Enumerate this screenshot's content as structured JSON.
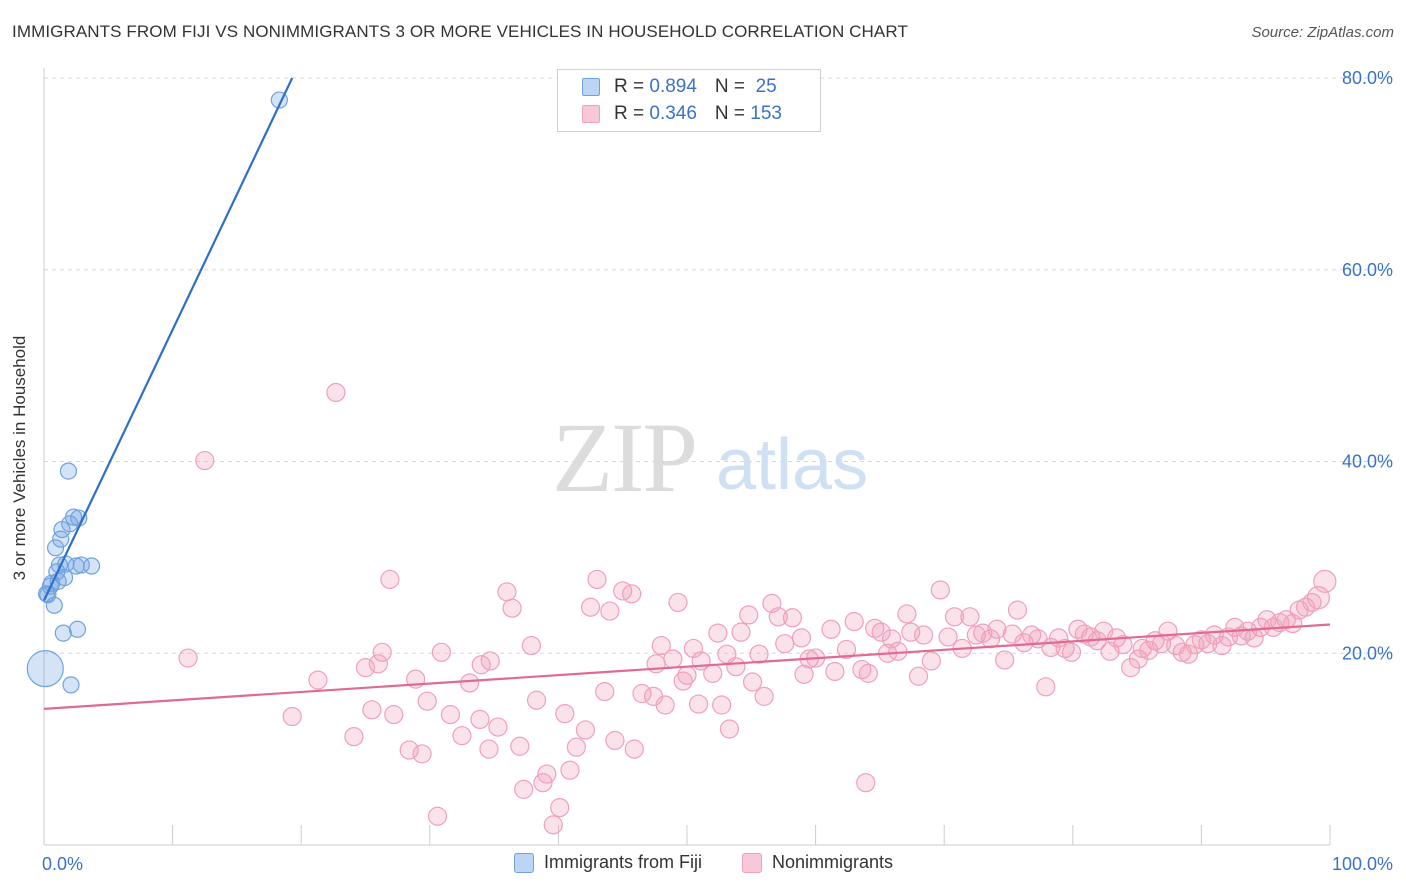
{
  "title": "IMMIGRANTS FROM FIJI VS NONIMMIGRANTS 3 OR MORE VEHICLES IN HOUSEHOLD CORRELATION CHART",
  "source": "Source: ZipAtlas.com",
  "watermark": {
    "zip": "ZIP",
    "atlas": "atlas"
  },
  "legend": {
    "rows": [
      {
        "r_label": "R = ",
        "r_value": "0.894",
        "n_label": "N = ",
        "n_value": " 25"
      },
      {
        "r_label": "R = ",
        "r_value": "0.346",
        "n_label": "N = ",
        "n_value": "153"
      }
    ]
  },
  "colors": {
    "fiji": "#6fa3e0",
    "fiji_line": "#2f6fc8",
    "nonimm": "#f0a0b8",
    "nonimm_line": "#e06a93",
    "axis_text": "#3a72c8",
    "grid": "#d8d8d8"
  },
  "chart_data": {
    "type": "scatter",
    "title": "IMMIGRANTS FROM FIJI VS NONIMMIGRANTS 3 OR MORE VEHICLES IN HOUSEHOLD CORRELATION CHART",
    "xlabel": "",
    "ylabel": "3 or more Vehicles in Household",
    "xlim": [
      0,
      100
    ],
    "ylim": [
      0,
      80
    ],
    "x_tick_labels": [
      "0.0%",
      "100.0%"
    ],
    "y_tick_labels": [
      "20.0%",
      "40.0%",
      "60.0%",
      "80.0%"
    ],
    "y_ticks": [
      20,
      40,
      60,
      80
    ],
    "grid": true,
    "legend_position": "bottom",
    "series": [
      {
        "name": "Immigrants from Fiji",
        "color": "#6fa3e0",
        "trend": {
          "x": [
            0,
            19.3
          ],
          "y": [
            25.5,
            80.0
          ]
        },
        "points": [
          [
            0.2,
            26.2
          ],
          [
            0.5,
            27.0
          ],
          [
            0.6,
            27.3
          ],
          [
            0.8,
            25.0
          ],
          [
            0.9,
            31.0
          ],
          [
            1.1,
            27.5
          ],
          [
            1.2,
            29.2
          ],
          [
            1.3,
            31.9
          ],
          [
            1.4,
            32.9
          ],
          [
            1.5,
            22.1
          ],
          [
            1.6,
            27.9
          ],
          [
            1.7,
            29.3
          ],
          [
            1.9,
            39.0
          ],
          [
            2.0,
            33.5
          ],
          [
            2.1,
            16.7
          ],
          [
            2.3,
            34.2
          ],
          [
            2.5,
            29.1
          ],
          [
            2.6,
            22.5
          ],
          [
            2.7,
            34.1
          ],
          [
            2.9,
            29.2
          ],
          [
            3.7,
            29.1
          ],
          [
            0.1,
            18.4
          ],
          [
            18.3,
            77.7
          ],
          [
            0.3,
            26.1
          ],
          [
            1.0,
            28.5
          ]
        ]
      },
      {
        "name": "Nonimmigrants",
        "color": "#f0a0b8",
        "trend": {
          "x": [
            0,
            100
          ],
          "y": [
            14.2,
            23.0
          ]
        },
        "points": [
          [
            11.2,
            19.5
          ],
          [
            12.5,
            40.1
          ],
          [
            19.3,
            13.4
          ],
          [
            21.3,
            17.2
          ],
          [
            22.7,
            47.2
          ],
          [
            24.1,
            11.3
          ],
          [
            25.0,
            18.5
          ],
          [
            25.5,
            14.1
          ],
          [
            26.0,
            18.9
          ],
          [
            26.3,
            20.1
          ],
          [
            26.9,
            27.7
          ],
          [
            27.2,
            13.6
          ],
          [
            28.4,
            9.9
          ],
          [
            28.9,
            17.3
          ],
          [
            29.4,
            9.5
          ],
          [
            29.8,
            15.0
          ],
          [
            30.6,
            3.0
          ],
          [
            30.9,
            20.1
          ],
          [
            31.6,
            13.6
          ],
          [
            32.5,
            11.4
          ],
          [
            33.1,
            16.9
          ],
          [
            33.9,
            13.1
          ],
          [
            34.0,
            18.8
          ],
          [
            34.6,
            10.0
          ],
          [
            34.7,
            19.2
          ],
          [
            35.3,
            12.3
          ],
          [
            36.0,
            26.4
          ],
          [
            36.4,
            24.7
          ],
          [
            37.0,
            10.3
          ],
          [
            37.3,
            5.8
          ],
          [
            37.9,
            20.8
          ],
          [
            38.3,
            15.1
          ],
          [
            38.8,
            6.5
          ],
          [
            39.1,
            7.4
          ],
          [
            39.6,
            2.1
          ],
          [
            40.1,
            3.9
          ],
          [
            40.5,
            13.7
          ],
          [
            40.9,
            7.8
          ],
          [
            41.4,
            10.2
          ],
          [
            42.1,
            12.0
          ],
          [
            42.5,
            24.8
          ],
          [
            43.0,
            27.7
          ],
          [
            43.6,
            16.0
          ],
          [
            44.0,
            24.4
          ],
          [
            44.4,
            10.9
          ],
          [
            45.0,
            26.5
          ],
          [
            45.7,
            26.2
          ],
          [
            45.9,
            10.0
          ],
          [
            46.5,
            15.8
          ],
          [
            47.4,
            15.5
          ],
          [
            47.6,
            18.9
          ],
          [
            48.0,
            20.8
          ],
          [
            48.3,
            14.6
          ],
          [
            48.9,
            19.4
          ],
          [
            49.3,
            25.3
          ],
          [
            50.0,
            17.7
          ],
          [
            50.5,
            20.5
          ],
          [
            51.1,
            19.2
          ],
          [
            52.0,
            17.9
          ],
          [
            52.4,
            22.1
          ],
          [
            52.7,
            14.6
          ],
          [
            53.1,
            19.9
          ],
          [
            53.8,
            18.6
          ],
          [
            54.2,
            22.2
          ],
          [
            54.8,
            24.0
          ],
          [
            55.6,
            19.9
          ],
          [
            56.0,
            15.5
          ],
          [
            56.6,
            25.2
          ],
          [
            57.1,
            23.8
          ],
          [
            57.6,
            21.0
          ],
          [
            58.2,
            23.7
          ],
          [
            58.9,
            21.6
          ],
          [
            59.1,
            17.8
          ],
          [
            59.5,
            19.4
          ],
          [
            60.0,
            19.5
          ],
          [
            61.5,
            18.1
          ],
          [
            61.2,
            22.5
          ],
          [
            62.4,
            20.4
          ],
          [
            63.0,
            23.3
          ],
          [
            63.6,
            18.3
          ],
          [
            64.1,
            17.9
          ],
          [
            64.6,
            22.6
          ],
          [
            65.1,
            22.2
          ],
          [
            65.6,
            20.0
          ],
          [
            65.9,
            21.5
          ],
          [
            66.4,
            20.2
          ],
          [
            67.1,
            24.1
          ],
          [
            67.4,
            22.2
          ],
          [
            68.0,
            17.6
          ],
          [
            68.4,
            21.9
          ],
          [
            69.0,
            19.2
          ],
          [
            69.7,
            26.6
          ],
          [
            70.3,
            21.7
          ],
          [
            70.8,
            23.8
          ],
          [
            71.4,
            20.5
          ],
          [
            72.0,
            23.8
          ],
          [
            72.5,
            21.9
          ],
          [
            73.0,
            22.1
          ],
          [
            73.6,
            21.5
          ],
          [
            74.1,
            22.5
          ],
          [
            74.7,
            19.3
          ],
          [
            75.3,
            22.0
          ],
          [
            75.7,
            24.5
          ],
          [
            76.2,
            21.1
          ],
          [
            76.8,
            21.9
          ],
          [
            77.3,
            21.5
          ],
          [
            77.9,
            16.5
          ],
          [
            78.3,
            20.6
          ],
          [
            78.9,
            21.6
          ],
          [
            79.4,
            20.5
          ],
          [
            79.9,
            20.1
          ],
          [
            80.4,
            22.5
          ],
          [
            80.9,
            22.0
          ],
          [
            81.4,
            21.7
          ],
          [
            81.9,
            21.3
          ],
          [
            82.4,
            22.3
          ],
          [
            82.9,
            20.2
          ],
          [
            83.4,
            21.6
          ],
          [
            83.9,
            20.9
          ],
          [
            84.5,
            18.5
          ],
          [
            85.1,
            19.4
          ],
          [
            85.4,
            20.5
          ],
          [
            85.9,
            20.3
          ],
          [
            86.4,
            21.3
          ],
          [
            86.9,
            21.0
          ],
          [
            87.4,
            22.3
          ],
          [
            88.0,
            20.8
          ],
          [
            88.5,
            20.1
          ],
          [
            89.0,
            19.9
          ],
          [
            89.5,
            20.9
          ],
          [
            90.0,
            21.4
          ],
          [
            90.5,
            21.0
          ],
          [
            91.0,
            21.9
          ],
          [
            91.6,
            20.8
          ],
          [
            92.1,
            21.7
          ],
          [
            92.6,
            22.7
          ],
          [
            93.1,
            21.8
          ],
          [
            93.6,
            22.3
          ],
          [
            94.1,
            21.6
          ],
          [
            94.6,
            22.7
          ],
          [
            95.1,
            23.5
          ],
          [
            95.6,
            22.7
          ],
          [
            96.1,
            23.2
          ],
          [
            96.6,
            23.5
          ],
          [
            97.1,
            23.1
          ],
          [
            97.6,
            24.5
          ],
          [
            98.1,
            24.8
          ],
          [
            98.6,
            25.3
          ],
          [
            99.1,
            25.8
          ],
          [
            99.6,
            27.5
          ],
          [
            49.7,
            17.1
          ],
          [
            50.9,
            14.7
          ],
          [
            53.3,
            12.1
          ],
          [
            55.1,
            17.0
          ],
          [
            63.9,
            6.5
          ]
        ]
      }
    ]
  },
  "bottom_legend": {
    "items": [
      {
        "label": "Immigrants from Fiji"
      },
      {
        "label": "Nonimmigrants"
      }
    ]
  }
}
